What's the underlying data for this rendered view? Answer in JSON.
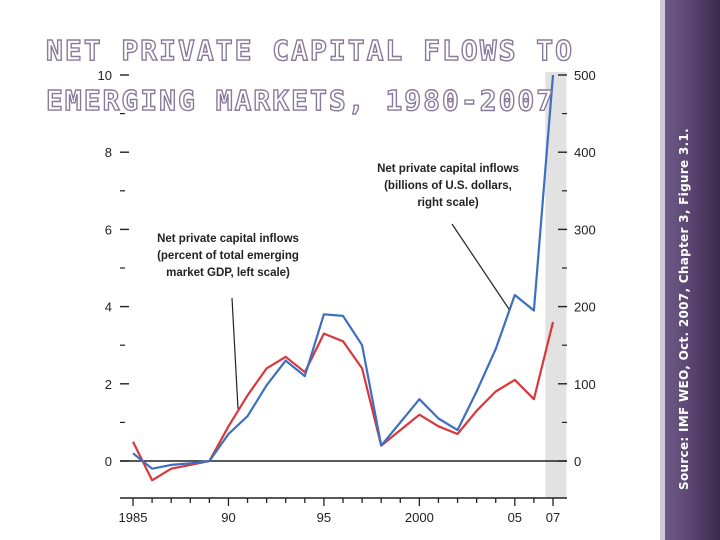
{
  "title": {
    "line1": "NET PRIVATE CAPITAL FLOWS TO",
    "line2": "EMERGING MARKETS, 1980-2007"
  },
  "source": "Source: IMF WEO, Oct. 2007, Chapter 3, Figure 3.1.",
  "colors": {
    "left_series": "#d8373d",
    "right_series": "#3d6fc0",
    "shade": "#e2e2e2",
    "axis": "#222222",
    "sidebar": "#5b4672"
  },
  "chart_data": {
    "type": "line",
    "x": [
      1985,
      1986,
      1987,
      1988,
      1989,
      1990,
      1991,
      1992,
      1993,
      1994,
      1995,
      1996,
      1997,
      1998,
      1999,
      2000,
      2001,
      2002,
      2003,
      2004,
      2005,
      2006,
      2007
    ],
    "x_tick_labels": [
      {
        "x": 1985,
        "label": "1985"
      },
      {
        "x": 1990,
        "label": "90"
      },
      {
        "x": 1995,
        "label": "95"
      },
      {
        "x": 2000,
        "label": "2000"
      },
      {
        "x": 2005,
        "label": "05"
      },
      {
        "x": 2007,
        "label": "07"
      }
    ],
    "xlim": [
      1985,
      2007
    ],
    "shaded_period": [
      2006.6,
      2007.7
    ],
    "left_axis": {
      "ylim": [
        0,
        10
      ],
      "ticks": [
        0,
        2,
        4,
        6,
        8,
        10
      ],
      "minor_ticks": [
        1,
        3,
        5,
        7,
        9
      ]
    },
    "right_axis": {
      "ylim": [
        0,
        500
      ],
      "ticks": [
        0,
        100,
        200,
        300,
        400,
        500
      ],
      "minor_ticks": [
        50,
        150,
        250,
        350,
        450
      ]
    },
    "series": [
      {
        "name": "Net private capital inflows (percent of total emerging market GDP, left scale)",
        "axis": "left",
        "values": [
          0.5,
          -0.5,
          -0.2,
          -0.1,
          0.0,
          0.9,
          1.7,
          2.4,
          2.7,
          2.3,
          3.3,
          3.1,
          2.4,
          0.4,
          0.8,
          1.2,
          0.9,
          0.7,
          1.3,
          1.8,
          2.1,
          1.6,
          3.6
        ]
      },
      {
        "name": "Net private capital inflows (billions of U.S. dollars, right scale)",
        "axis": "right",
        "values": [
          10,
          -10,
          -5,
          -3,
          0,
          35,
          58,
          98,
          130,
          110,
          190,
          188,
          150,
          20,
          50,
          80,
          55,
          40,
          90,
          145,
          215,
          195,
          500
        ]
      }
    ],
    "annotations": [
      {
        "lines": [
          "Net private capital inflows",
          "(billions of U.S. dollars,",
          "right scale)"
        ],
        "series": 1,
        "arrow_to_x": 2004.7
      },
      {
        "lines": [
          "Net private capital inflows",
          "(percent of total emerging",
          "market GDP, left scale)"
        ],
        "series": 0,
        "arrow_to_x": 1990.5
      }
    ]
  }
}
